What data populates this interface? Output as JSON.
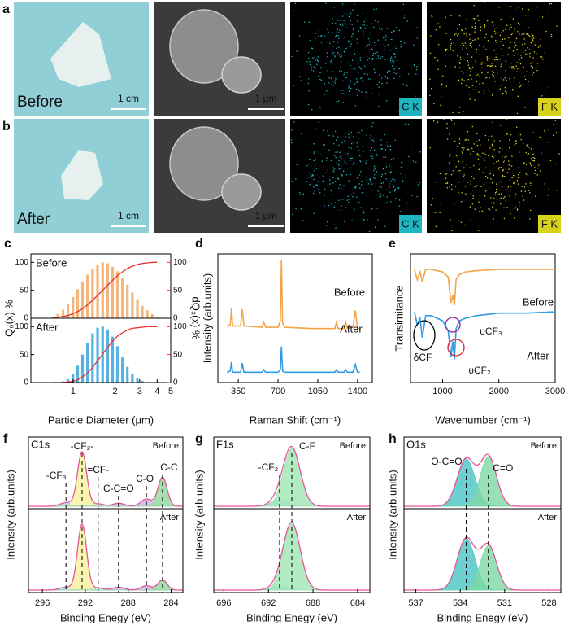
{
  "figure": {
    "rows": [
      {
        "label": "a",
        "state": "Before",
        "photo_scale": "1 cm",
        "sem_scale": "1 μm",
        "maps": [
          "C K",
          "F K"
        ]
      },
      {
        "label": "b",
        "state": "After",
        "photo_scale": "1 cm",
        "sem_scale": "1 μm",
        "maps": [
          "C K",
          "F K"
        ]
      }
    ]
  },
  "chart_data": [
    {
      "type": "bar",
      "label": "c",
      "xlabel": "Particle Diameter (μm)",
      "ylabel": "Q₀(x) %",
      "y2label": "dQ₃(x) %",
      "log_x": true,
      "xlim": [
        0.5,
        5
      ],
      "xticks": [
        1,
        2,
        3,
        4,
        5
      ],
      "ylim": [
        0,
        115
      ],
      "yticks": [
        0,
        50,
        100
      ],
      "y2lim": [
        0,
        115
      ],
      "y2ticks": [
        0,
        50,
        100
      ],
      "cumulative_color": "#e8312f",
      "x": [
        0.72,
        0.78,
        0.85,
        0.92,
        1.0,
        1.08,
        1.17,
        1.27,
        1.38,
        1.5,
        1.63,
        1.77,
        1.92,
        2.08,
        2.26,
        2.45,
        2.66,
        2.89,
        3.13,
        3.4,
        3.69,
        4.0
      ],
      "series": [
        {
          "name": "Before",
          "color": "#f0a55c",
          "values": [
            3,
            8,
            15,
            25,
            38,
            52,
            66,
            78,
            88,
            96,
            100,
            98,
            92,
            84,
            72,
            60,
            46,
            34,
            22,
            14,
            7,
            3
          ],
          "cumulative": [
            1,
            2,
            3,
            5,
            8,
            12,
            17,
            24,
            32,
            41,
            50,
            59,
            68,
            76,
            83,
            89,
            93,
            96,
            98,
            99,
            100,
            100
          ]
        },
        {
          "name": "After",
          "color": "#2d9fd8",
          "values": [
            0,
            0,
            2,
            6,
            15,
            30,
            50,
            70,
            88,
            98,
            100,
            95,
            82,
            65,
            45,
            28,
            15,
            7,
            3,
            1,
            0,
            0
          ],
          "cumulative": [
            0,
            0,
            0,
            1,
            2,
            5,
            10,
            17,
            27,
            39,
            51,
            63,
            74,
            83,
            89,
            94,
            97,
            98,
            99,
            100,
            100,
            100
          ]
        }
      ]
    },
    {
      "type": "line",
      "label": "d",
      "xlabel": "Raman Shift (cm⁻¹)",
      "ylabel": "Intensity (arb.units)",
      "xlim": [
        170,
        1530
      ],
      "xticks": [
        350,
        700,
        1050,
        1400
      ],
      "ylim": [
        0,
        100
      ],
      "x": [
        250,
        280,
        290,
        300,
        370,
        385,
        400,
        560,
        575,
        590,
        700,
        720,
        730,
        740,
        760,
        1000,
        1200,
        1215,
        1230,
        1280,
        1295,
        1310,
        1360,
        1380,
        1400,
        1420
      ],
      "series": [
        {
          "name": "Before",
          "color": "#f5a348",
          "values": [
            44,
            45,
            58,
            44,
            44,
            57,
            44,
            43,
            47,
            43,
            43,
            48,
            95,
            46,
            43,
            42,
            42,
            47,
            42,
            42,
            47,
            42,
            43,
            56,
            42,
            42
          ]
        },
        {
          "name": "After",
          "color": "#2f9be3",
          "values": [
            8,
            9,
            16,
            8,
            8,
            15,
            8,
            8,
            10,
            8,
            8,
            10,
            28,
            9,
            8,
            8,
            8,
            10,
            8,
            8,
            10,
            8,
            8,
            14,
            8,
            8
          ]
        }
      ]
    },
    {
      "type": "line",
      "label": "e",
      "xlabel": "Wavenumber (cm⁻¹)",
      "ylabel": "Transimitance",
      "xlim": [
        430,
        3000
      ],
      "xticks": [
        1000,
        2000,
        3000
      ],
      "ylim": [
        0,
        100
      ],
      "x": [
        500,
        550,
        600,
        640,
        700,
        800,
        900,
        1000,
        1100,
        1150,
        1180,
        1210,
        1240,
        1300,
        1400,
        1600,
        2000,
        2500,
        3000
      ],
      "series": [
        {
          "name": "Before",
          "color": "#f5a348",
          "values": [
            88,
            80,
            86,
            78,
            88,
            88,
            87,
            86,
            82,
            62,
            68,
            60,
            80,
            84,
            86,
            87,
            88,
            88,
            88
          ]
        },
        {
          "name": "After",
          "color": "#2f9be3",
          "values": [
            55,
            45,
            50,
            35,
            52,
            52,
            50,
            48,
            40,
            20,
            32,
            18,
            42,
            48,
            50,
            52,
            54,
            54,
            55
          ]
        }
      ],
      "annotations": [
        {
          "text": "δCF",
          "color": "#000000"
        },
        {
          "text": "υCF₃",
          "color": "#8b2a8f"
        },
        {
          "text": "υCF₂",
          "color": "#d0263a"
        }
      ]
    },
    {
      "type": "xps",
      "label": "f",
      "title": "C1s",
      "xlabel": "Binding Enegy (eV)",
      "ylabel": "Intensity (arb.units)",
      "xlim": [
        297.3,
        282.9
      ],
      "xticks": [
        296,
        292,
        288,
        284
      ],
      "ylim": [
        0,
        110
      ],
      "envelope_color": "#e6549a",
      "components": [
        {
          "name": "-CF₃",
          "center": 293.8,
          "fwhm": 1.3,
          "color": "#a8d4ec"
        },
        {
          "name": "-CF₂-",
          "center": 292.3,
          "fwhm": 1.0,
          "color": "#f6f29c"
        },
        {
          "name": "=CF-",
          "center": 290.8,
          "fwhm": 1.2,
          "color": "#bfe6d0"
        },
        {
          "name": "C-C=O",
          "center": 288.9,
          "fwhm": 1.3,
          "color": "#c4b5e6"
        },
        {
          "name": "C-O",
          "center": 286.3,
          "fwhm": 1.2,
          "color": "#c9b0e3"
        },
        {
          "name": "C-C",
          "center": 284.8,
          "fwhm": 1.0,
          "color": "#8fd99b"
        }
      ],
      "series": [
        {
          "name": "Before",
          "values": [
            6,
            90,
            4,
            5,
            12,
            48
          ]
        },
        {
          "name": "After",
          "values": [
            4,
            92,
            3,
            4,
            6,
            14
          ]
        }
      ]
    },
    {
      "type": "xps",
      "label": "g",
      "title": "F1s",
      "xlabel": "Binding Enegy (eV)",
      "ylabel": "Intensity (arb.units)",
      "xlim": [
        696.9,
        682.9
      ],
      "xticks": [
        696,
        692,
        688,
        684
      ],
      "ylim": [
        0,
        110
      ],
      "envelope_color": "#e6549a",
      "components": [
        {
          "name": "-CF₂",
          "center": 691.0,
          "fwhm": 1.8,
          "color": "#9fd0ea"
        },
        {
          "name": "C-F",
          "center": 689.9,
          "fwhm": 1.8,
          "color": "#9fe6b2"
        }
      ],
      "series": [
        {
          "name": "Before",
          "values": [
            10,
            95
          ]
        },
        {
          "name": "After",
          "values": [
            6,
            92
          ]
        }
      ]
    },
    {
      "type": "xps",
      "label": "h",
      "title": "O1s",
      "xlabel": "Binding Enegy (eV)",
      "ylabel": "Intensity (arb.units)",
      "xlim": [
        537.8,
        527.2
      ],
      "xticks": [
        537,
        534,
        531,
        528
      ],
      "ylim": [
        0,
        110
      ],
      "envelope_color": "#e6549a",
      "components": [
        {
          "name": "O-C=O",
          "center": 533.6,
          "fwhm": 1.4,
          "color": "#47c4c6"
        },
        {
          "name": "C=O",
          "center": 532.1,
          "fwhm": 1.3,
          "color": "#7ed8a4"
        }
      ],
      "series": [
        {
          "name": "Before",
          "values": [
            78,
            82
          ]
        },
        {
          "name": "After",
          "values": [
            72,
            62
          ]
        }
      ]
    }
  ]
}
